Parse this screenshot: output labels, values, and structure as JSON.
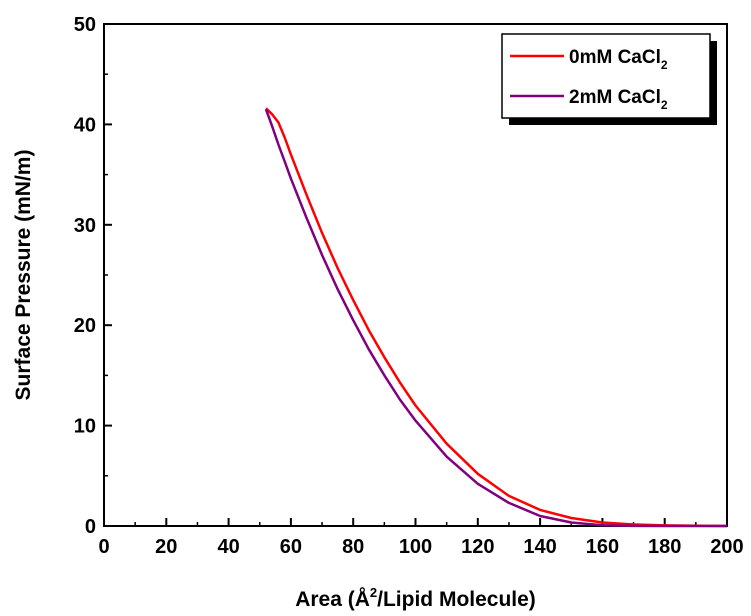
{
  "chart_data": {
    "type": "line",
    "xlabel_main": "Area (",
    "xlabel_unit": "Å",
    "xlabel_sup": "2",
    "xlabel_rest": "/Lipid Molecule)",
    "ylabel": "Surface Pressure (mN/m)",
    "xlim": [
      0,
      200
    ],
    "ylim": [
      0,
      50
    ],
    "x_ticks": [
      "0",
      "20",
      "40",
      "60",
      "80",
      "100",
      "120",
      "140",
      "160",
      "180",
      "200"
    ],
    "y_ticks": [
      "0",
      "10",
      "20",
      "30",
      "40",
      "50"
    ],
    "x_tick_values": [
      0,
      20,
      40,
      60,
      80,
      100,
      120,
      140,
      160,
      180,
      200
    ],
    "y_tick_values": [
      0,
      10,
      20,
      30,
      40,
      50
    ],
    "grid": false,
    "legend_placement": "top-right",
    "series": [
      {
        "name_main": "0mM CaCl",
        "name_sub": "2",
        "color": "#ff0000",
        "x": [
          52,
          54,
          56,
          58,
          60,
          65,
          70,
          75,
          80,
          85,
          90,
          95,
          100,
          110,
          120,
          130,
          140,
          150,
          160,
          170,
          180,
          190,
          200
        ],
        "y": [
          41.6,
          41.0,
          40.2,
          38.7,
          37.0,
          33.0,
          29.2,
          25.7,
          22.5,
          19.5,
          16.8,
          14.3,
          12.0,
          8.2,
          5.2,
          3.0,
          1.6,
          0.8,
          0.35,
          0.15,
          0.06,
          0.02,
          0.0
        ]
      },
      {
        "name_main": "2mM CaCl",
        "name_sub": "2",
        "color": "#800080",
        "x": [
          52,
          54,
          56,
          58,
          60,
          65,
          70,
          75,
          80,
          85,
          90,
          95,
          100,
          110,
          120,
          130,
          140,
          150,
          160,
          170,
          180,
          190,
          200
        ],
        "y": [
          41.5,
          39.8,
          38.0,
          36.3,
          34.6,
          30.7,
          27.0,
          23.6,
          20.5,
          17.6,
          15.0,
          12.6,
          10.5,
          6.9,
          4.2,
          2.3,
          1.0,
          0.35,
          0.08,
          0.01,
          0.0,
          0.0,
          0.0
        ]
      }
    ]
  }
}
